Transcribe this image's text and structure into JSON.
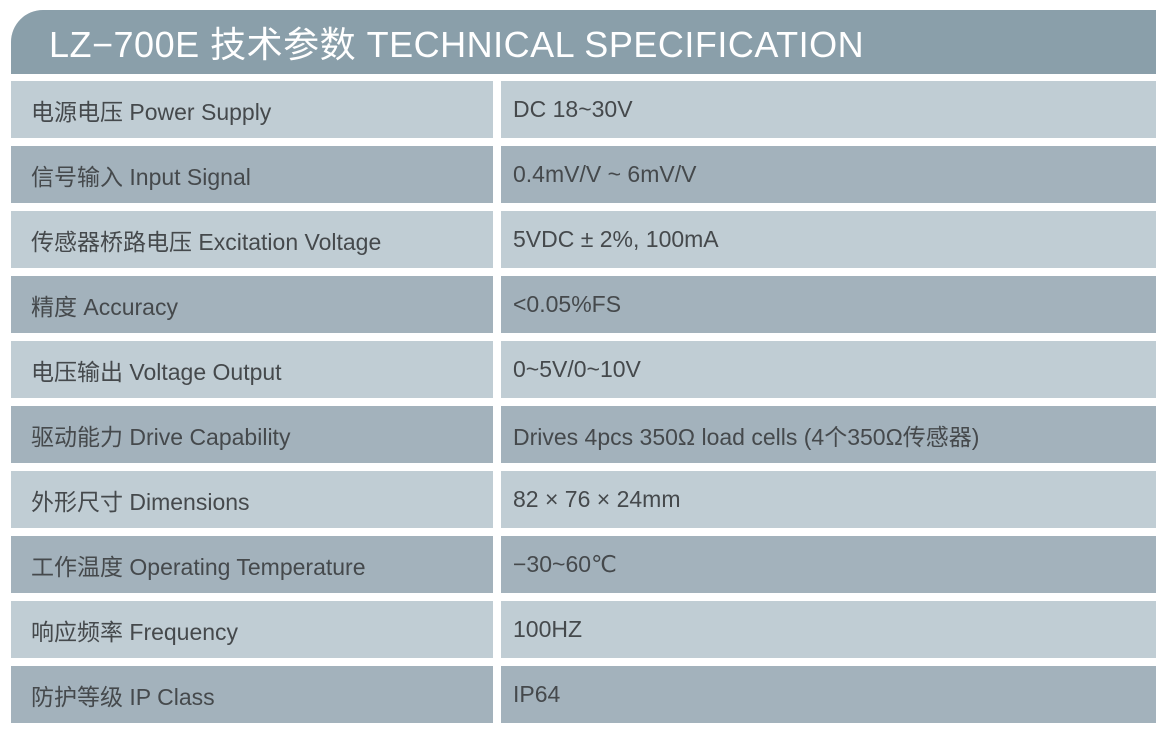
{
  "header": {
    "title": "LZ−700E 技术参数 TECHNICAL SPECIFICATION"
  },
  "colors": {
    "header_bg": "#8a9faa",
    "row_light": "#c0cdd4",
    "row_dark": "#a3b2bc",
    "text": "#45494c",
    "title_text": "#ffffff"
  },
  "table": {
    "rows": [
      {
        "label": "电源电压 Power Supply",
        "value": "DC 18~30V"
      },
      {
        "label": "信号输入 Input Signal",
        "value": "0.4mV/V ~ 6mV/V"
      },
      {
        "label": "传感器桥路电压 Excitation Voltage",
        "value": "5VDC ± 2%, 100mA"
      },
      {
        "label": "精度 Accuracy",
        "value": "<0.05%FS"
      },
      {
        "label": "电压输出 Voltage Output",
        "value": "0~5V/0~10V"
      },
      {
        "label": "驱动能力 Drive Capability",
        "value": "Drives 4pcs 350Ω load cells (4个350Ω传感器)"
      },
      {
        "label": "外形尺寸 Dimensions",
        "value": "82 × 76 × 24mm"
      },
      {
        "label": "工作温度 Operating Temperature",
        "value": "−30~60℃"
      },
      {
        "label": "响应频率 Frequency",
        "value": "100HZ"
      },
      {
        "label": "防护等级 IP Class",
        "value": "IP64"
      }
    ]
  }
}
